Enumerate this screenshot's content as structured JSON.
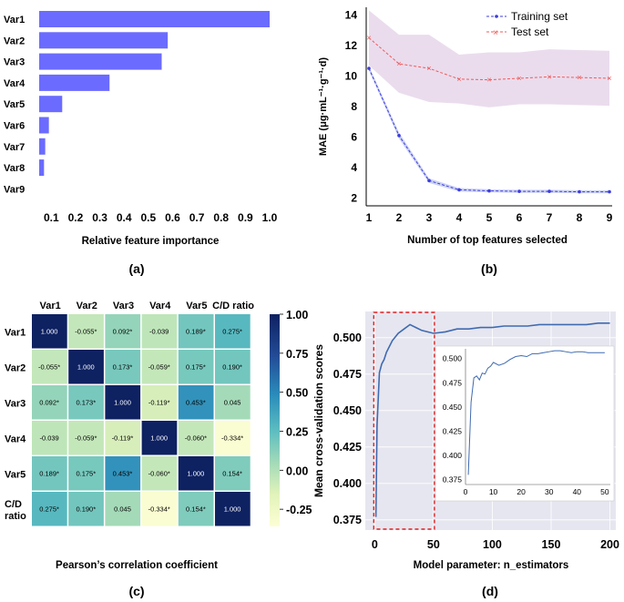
{
  "panel_labels": [
    "(a)",
    "(b)",
    "(c)",
    "(d)"
  ],
  "colors": {
    "bar": "#6b6bff",
    "train": "#3c3ce0",
    "test": "#f05a5a",
    "band": "#e6d6ea",
    "panel_bg": "#e6e6f0",
    "line": "#3f6ab0",
    "dash": "#e02020"
  },
  "chart_data": [
    {
      "type": "bar",
      "orientation": "horizontal",
      "categories": [
        "Var1",
        "Var2",
        "Var3",
        "Var4",
        "Var5",
        "Var6",
        "Var7",
        "Var8",
        "Var9"
      ],
      "values": [
        1.0,
        0.58,
        0.555,
        0.34,
        0.145,
        0.09,
        0.075,
        0.07,
        0.05
      ],
      "xlim": [
        0.05,
        1.0
      ],
      "xticks": [
        "0.1",
        "0.2",
        "0.3",
        "0.4",
        "0.5",
        "0.6",
        "0.7",
        "0.8",
        "0.9",
        "1.0"
      ],
      "xlabel": "Relative feature importance",
      "panel": "(a)"
    },
    {
      "type": "line",
      "x": [
        1,
        2,
        3,
        4,
        5,
        6,
        7,
        8,
        9
      ],
      "series": [
        {
          "name": "Training set",
          "values": [
            10.5,
            6.1,
            3.15,
            2.55,
            2.48,
            2.45,
            2.45,
            2.42,
            2.42
          ],
          "band": [
            0.15,
            0.2,
            0.15,
            0.12,
            0.1,
            0.1,
            0.1,
            0.1,
            0.1
          ]
        },
        {
          "name": "Test set",
          "values": [
            12.5,
            10.8,
            10.5,
            9.8,
            9.75,
            9.85,
            9.95,
            9.9,
            9.85
          ],
          "band": [
            1.8,
            1.9,
            2.2,
            1.6,
            1.8,
            1.7,
            1.8,
            1.8,
            1.8
          ]
        }
      ],
      "ylim": [
        1.5,
        14.5
      ],
      "yticks": [
        "2",
        "4",
        "6",
        "8",
        "10",
        "12",
        "14"
      ],
      "xticks": [
        "1",
        "2",
        "3",
        "4",
        "5",
        "6",
        "7",
        "8",
        "9"
      ],
      "xlabel": "Number of top features selected",
      "ylabel": "MAE (μg·mL⁻¹·g⁻¹·d)",
      "legend": "top-right",
      "panel": "(b)"
    },
    {
      "type": "heatmap",
      "col_labels": [
        "Var1",
        "Var2",
        "Var3",
        "Var4",
        "Var5",
        "C/D ratio"
      ],
      "row_labels": [
        "Var1",
        "Var2",
        "Var3",
        "Var4",
        "Var5",
        "C/D ratio"
      ],
      "values": [
        [
          1.0,
          -0.055,
          0.092,
          -0.039,
          0.189,
          0.275
        ],
        [
          -0.055,
          1.0,
          0.173,
          -0.059,
          0.175,
          0.19
        ],
        [
          0.092,
          0.173,
          1.0,
          -0.119,
          0.453,
          0.045
        ],
        [
          -0.039,
          -0.059,
          -0.119,
          1.0,
          -0.06,
          -0.334
        ],
        [
          0.189,
          0.175,
          0.453,
          -0.06,
          1.0,
          0.154
        ],
        [
          0.275,
          0.19,
          0.045,
          -0.334,
          0.154,
          1.0
        ]
      ],
      "cell_labels": [
        [
          "1.000",
          "-0.055*",
          "0.092*",
          "-0.039",
          "0.189*",
          "0.275*"
        ],
        [
          "-0.055*",
          "1.000",
          "0.173*",
          "-0.059*",
          "0.175*",
          "0.190*"
        ],
        [
          "0.092*",
          "0.173*",
          "1.000",
          "-0.119*",
          "0.453*",
          "0.045"
        ],
        [
          "-0.039",
          "-0.059*",
          "-0.119*",
          "1.000",
          "-0.060*",
          "-0.334*"
        ],
        [
          "0.189*",
          "0.175*",
          "0.453*",
          "-0.060*",
          "1.000",
          "0.154*"
        ],
        [
          "0.275*",
          "0.190*",
          "0.045",
          "-0.334*",
          "0.154*",
          "1.000"
        ]
      ],
      "colorbar_ticks": [
        "1.00",
        "0.75",
        "0.50",
        "0.25",
        "0.00",
        "-0.25"
      ],
      "colorbar_range": [
        -0.36,
        1.0
      ],
      "xlabel": "Pearson’s correlation coefficient",
      "panel": "(c)"
    },
    {
      "type": "line",
      "series": [
        {
          "name": "Mean cross-validation score",
          "x": [
            1,
            2,
            4,
            6,
            8,
            10,
            15,
            20,
            25,
            30,
            35,
            40,
            45,
            50,
            60,
            70,
            80,
            90,
            100,
            110,
            120,
            130,
            140,
            150,
            160,
            170,
            180,
            190,
            200
          ],
          "values": [
            0.377,
            0.44,
            0.476,
            0.482,
            0.485,
            0.49,
            0.498,
            0.503,
            0.506,
            0.509,
            0.507,
            0.505,
            0.504,
            0.503,
            0.504,
            0.506,
            0.506,
            0.507,
            0.507,
            0.508,
            0.508,
            0.508,
            0.509,
            0.509,
            0.509,
            0.509,
            0.509,
            0.51,
            0.51
          ]
        }
      ],
      "xlim": [
        -8,
        205
      ],
      "ylim": [
        0.368,
        0.518
      ],
      "xticks": [
        "0",
        "50",
        "100",
        "150",
        "200"
      ],
      "yticks": [
        "0.375",
        "0.400",
        "0.425",
        "0.450",
        "0.475",
        "0.500"
      ],
      "xlabel": "Model parameter: n_estimators",
      "ylabel": "Mean cross-validation scores",
      "highlight_x_range": [
        0,
        50
      ],
      "inset": {
        "x": [
          1,
          2,
          3,
          4,
          5,
          6,
          7,
          8,
          9,
          10,
          12,
          14,
          16,
          18,
          20,
          22,
          24,
          26,
          28,
          30,
          32,
          34,
          36,
          38,
          40,
          42,
          44,
          46,
          48,
          50
        ],
        "values": [
          0.38,
          0.455,
          0.48,
          0.482,
          0.478,
          0.485,
          0.484,
          0.49,
          0.492,
          0.496,
          0.493,
          0.495,
          0.499,
          0.502,
          0.503,
          0.502,
          0.505,
          0.505,
          0.506,
          0.507,
          0.508,
          0.508,
          0.507,
          0.506,
          0.507,
          0.507,
          0.506,
          0.506,
          0.506,
          0.506
        ],
        "xlim": [
          0,
          52
        ],
        "ylim": [
          0.37,
          0.51
        ],
        "xticks": [
          "0",
          "10",
          "20",
          "30",
          "40",
          "50"
        ],
        "yticks": [
          "0.375",
          "0.400",
          "0.425",
          "0.450",
          "0.475",
          "0.500"
        ]
      },
      "panel": "(d)"
    }
  ]
}
